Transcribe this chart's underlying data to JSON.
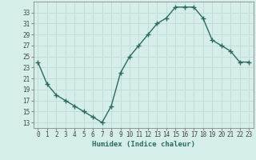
{
  "x": [
    0,
    1,
    2,
    3,
    4,
    5,
    6,
    7,
    8,
    9,
    10,
    11,
    12,
    13,
    14,
    15,
    16,
    17,
    18,
    19,
    20,
    21,
    22,
    23
  ],
  "y": [
    24,
    20,
    18,
    17,
    16,
    15,
    14,
    13,
    16,
    22,
    25,
    27,
    29,
    31,
    32,
    34,
    34,
    34,
    32,
    28,
    27,
    26,
    24,
    24
  ],
  "line_color": "#2d6b5e",
  "marker": "+",
  "marker_size": 4,
  "marker_lw": 1.0,
  "line_width": 1.0,
  "xlabel": "Humidex (Indice chaleur)",
  "xlim": [
    -0.5,
    23.5
  ],
  "ylim": [
    12,
    35
  ],
  "yticks": [
    13,
    15,
    17,
    19,
    21,
    23,
    25,
    27,
    29,
    31,
    33
  ],
  "xtick_labels": [
    "0",
    "1",
    "2",
    "3",
    "4",
    "5",
    "6",
    "7",
    "8",
    "9",
    "10",
    "11",
    "12",
    "13",
    "14",
    "15",
    "16",
    "17",
    "18",
    "19",
    "20",
    "21",
    "22",
    "23"
  ],
  "bg_color": "#d5eeea",
  "grid_color": "#c0ddd8",
  "spine_color": "#888888",
  "tick_color": "#444444",
  "label_color": "#2d6b5e",
  "font_family": "monospace",
  "xlabel_fontsize": 6.5,
  "tick_fontsize": 5.5
}
